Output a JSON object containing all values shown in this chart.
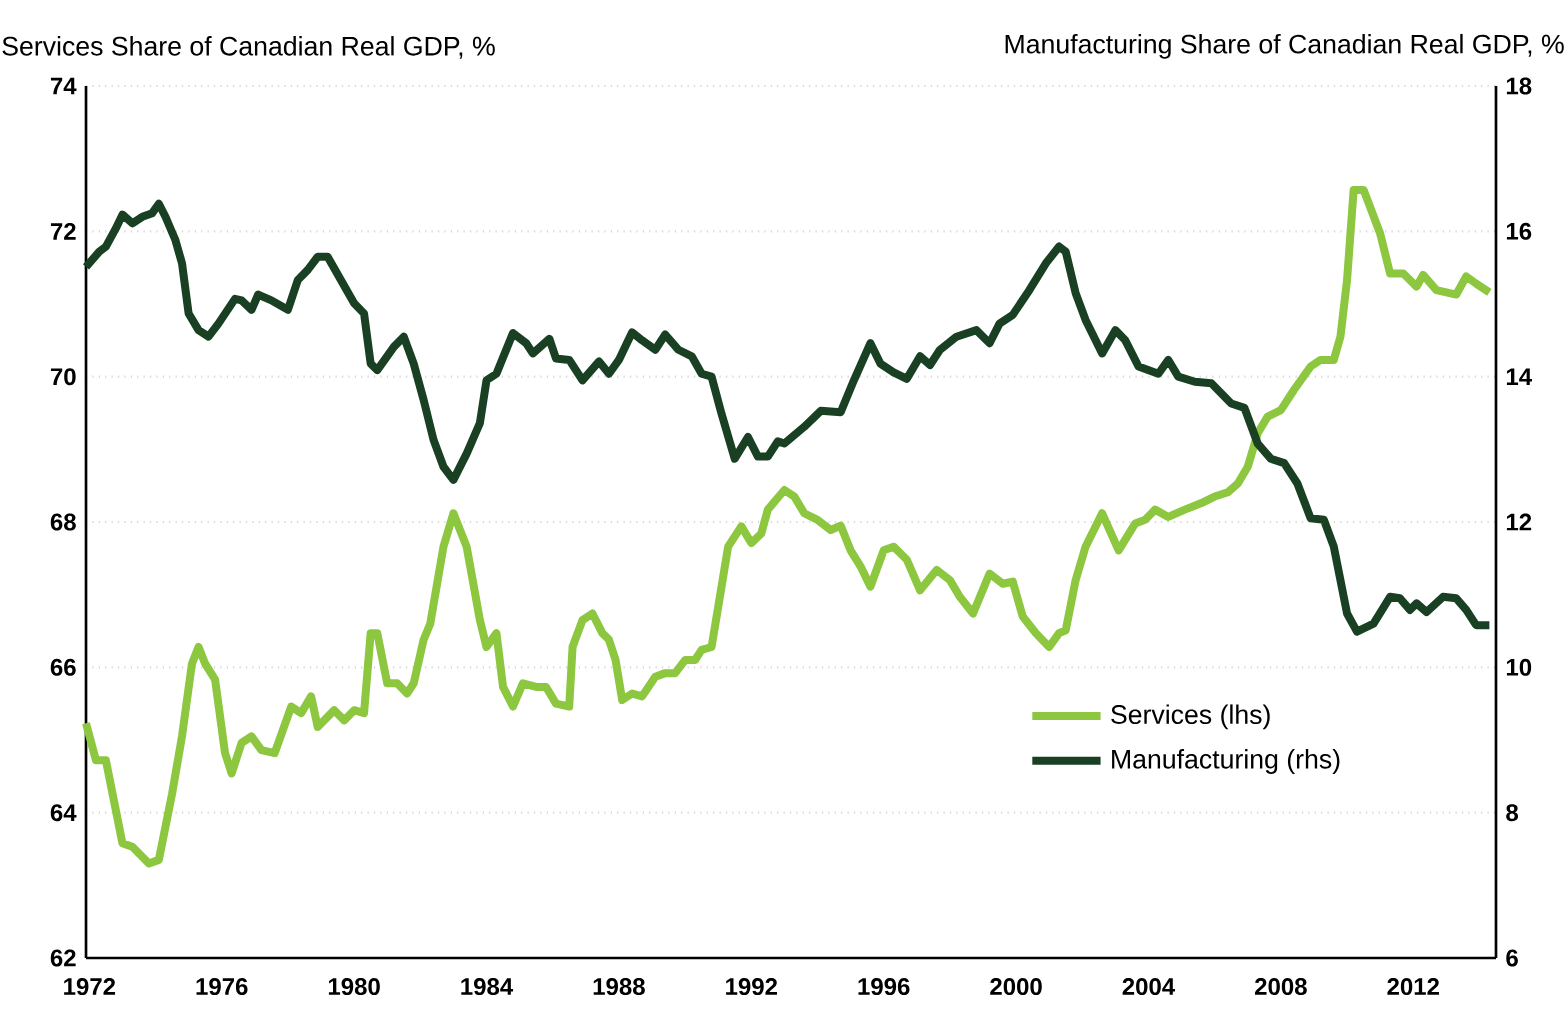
{
  "chart_data": {
    "type": "line",
    "ylabel": "Services Share of Canadian Real GDP, %",
    "y2label": "Manufacturing Share of Canadian Real GDP, %",
    "xlim": [
      1971.9,
      2014.5
    ],
    "xticks": [
      1972,
      1976,
      1980,
      1984,
      1988,
      1992,
      1996,
      2000,
      2004,
      2008,
      2012
    ],
    "ylim": [
      62,
      74
    ],
    "yticks": [
      62,
      64,
      66,
      68,
      70,
      72,
      74
    ],
    "y2lim": [
      6,
      18
    ],
    "y2ticks": [
      6,
      8,
      10,
      12,
      14,
      16,
      18
    ],
    "grid": "y",
    "legend": "bottom right",
    "series": [
      {
        "name": "Services (lhs)",
        "color": "#8dc63f",
        "axis": "y",
        "x": [
          1971.9,
          1972.2,
          1972.5,
          1973.0,
          1973.3,
          1973.8,
          1974.1,
          1974.5,
          1974.8,
          1975.1,
          1975.3,
          1975.5,
          1975.8,
          1976.1,
          1976.3,
          1976.6,
          1976.9,
          1977.2,
          1977.6,
          1978.1,
          1978.4,
          1978.7,
          1978.9,
          1979.4,
          1979.7,
          1980.0,
          1980.3,
          1980.5,
          1980.7,
          1981.0,
          1981.3,
          1981.6,
          1981.8,
          1982.1,
          1982.3,
          1982.7,
          1983.0,
          1983.4,
          1983.8,
          1984.0,
          1984.3,
          1984.5,
          1984.8,
          1985.1,
          1985.5,
          1985.8,
          1986.1,
          1986.5,
          1986.6,
          1986.9,
          1987.2,
          1987.5,
          1987.7,
          1987.9,
          1988.1,
          1988.4,
          1988.7,
          1989.1,
          1989.4,
          1989.7,
          1990.0,
          1990.3,
          1990.5,
          1990.8,
          1991.0,
          1991.3,
          1991.7,
          1992.0,
          1992.3,
          1992.5,
          1993.0,
          1993.3,
          1993.6,
          1994.0,
          1994.4,
          1994.7,
          1995.0,
          1995.3,
          1995.6,
          1996.0,
          1996.3,
          1996.7,
          1997.1,
          1997.6,
          1998.0,
          1998.3,
          1998.7,
          1999.2,
          1999.6,
          1999.9,
          2000.2,
          2000.6,
          2001.0,
          2001.3,
          2001.5,
          2001.8,
          2002.1,
          2002.6,
          2003.1,
          2003.6,
          2003.9,
          2004.2,
          2004.6,
          2005.1,
          2005.6,
          2006.0,
          2006.4,
          2006.7,
          2007.0,
          2007.3,
          2007.6,
          2008.0,
          2008.4,
          2008.9,
          2009.2,
          2009.6,
          2009.8,
          2010.0,
          2010.2,
          2010.5,
          2011.0,
          2011.3,
          2011.7,
          2012.1,
          2012.3,
          2012.7,
          2013.3,
          2013.6,
          2013.9,
          2014.3
        ],
        "values": [
          65.23,
          64.72,
          64.72,
          63.58,
          63.53,
          63.3,
          63.35,
          64.26,
          65.05,
          66.05,
          66.28,
          66.05,
          65.83,
          64.82,
          64.54,
          64.96,
          65.05,
          64.86,
          64.82,
          65.46,
          65.37,
          65.6,
          65.18,
          65.41,
          65.27,
          65.41,
          65.37,
          66.47,
          66.47,
          65.78,
          65.78,
          65.64,
          65.78,
          66.38,
          66.6,
          67.66,
          68.12,
          67.66,
          66.65,
          66.28,
          66.47,
          65.73,
          65.46,
          65.78,
          65.73,
          65.73,
          65.5,
          65.46,
          66.28,
          66.65,
          66.74,
          66.47,
          66.38,
          66.1,
          65.55,
          65.64,
          65.6,
          65.87,
          65.92,
          65.92,
          66.1,
          66.1,
          66.24,
          66.28,
          66.83,
          67.66,
          67.94,
          67.71,
          67.84,
          68.17,
          68.44,
          68.35,
          68.12,
          68.03,
          67.89,
          67.95,
          67.61,
          67.39,
          67.11,
          67.61,
          67.66,
          67.48,
          67.06,
          67.34,
          67.2,
          66.97,
          66.74,
          67.29,
          67.15,
          67.18,
          66.7,
          66.47,
          66.28,
          66.47,
          66.51,
          67.2,
          67.66,
          68.12,
          67.61,
          67.98,
          68.03,
          68.17,
          68.07,
          68.17,
          68.26,
          68.35,
          68.41,
          68.53,
          68.76,
          69.22,
          69.45,
          69.54,
          69.82,
          70.14,
          70.23,
          70.23,
          70.55,
          71.33,
          72.57,
          72.57,
          71.97,
          71.42,
          71.42,
          71.24,
          71.4,
          71.19,
          71.13,
          71.38,
          71.28,
          71.16
        ]
      },
      {
        "name": "Manufacturing (rhs)",
        "color": "#1a4024",
        "axis": "y2",
        "x": [
          1971.9,
          1972.3,
          1972.5,
          1972.8,
          1973.0,
          1973.3,
          1973.6,
          1973.9,
          1974.1,
          1974.3,
          1974.6,
          1974.8,
          1975.0,
          1975.3,
          1975.6,
          1975.9,
          1976.4,
          1976.6,
          1976.9,
          1977.1,
          1977.5,
          1978.0,
          1978.3,
          1978.6,
          1978.9,
          1979.2,
          1979.6,
          1980.0,
          1980.3,
          1980.5,
          1980.7,
          1981.2,
          1981.5,
          1981.8,
          1982.1,
          1982.4,
          1982.7,
          1983.0,
          1983.4,
          1983.8,
          1984.0,
          1984.3,
          1984.8,
          1985.2,
          1985.4,
          1985.9,
          1986.1,
          1986.5,
          1986.9,
          1987.4,
          1987.7,
          1988.0,
          1988.4,
          1988.7,
          1989.1,
          1989.4,
          1989.8,
          1990.2,
          1990.5,
          1990.8,
          1991.1,
          1991.5,
          1991.9,
          1992.2,
          1992.5,
          1992.8,
          1993.0,
          1993.6,
          1994.1,
          1994.7,
          1995.1,
          1995.6,
          1995.9,
          1996.3,
          1996.7,
          1997.1,
          1997.4,
          1997.7,
          1998.2,
          1998.8,
          1999.2,
          1999.5,
          1999.9,
          2000.4,
          2000.9,
          2001.3,
          2001.5,
          2001.8,
          2002.1,
          2002.6,
          2003.0,
          2003.3,
          2003.7,
          2004.3,
          2004.6,
          2004.9,
          2005.4,
          2005.9,
          2006.5,
          2006.9,
          2007.3,
          2007.7,
          2008.1,
          2008.5,
          2008.9,
          2009.3,
          2009.6,
          2010.0,
          2010.3,
          2010.8,
          2011.3,
          2011.6,
          2011.9,
          2012.1,
          2012.4,
          2012.9,
          2013.3,
          2013.6,
          2013.9,
          2014.3
        ],
        "values": [
          15.51,
          15.72,
          15.79,
          16.04,
          16.23,
          16.11,
          16.2,
          16.25,
          16.38,
          16.2,
          15.88,
          15.56,
          14.87,
          14.64,
          14.55,
          14.73,
          15.07,
          15.05,
          14.92,
          15.13,
          15.05,
          14.92,
          15.33,
          15.47,
          15.65,
          15.65,
          15.33,
          15.01,
          14.87,
          14.18,
          14.09,
          14.41,
          14.55,
          14.18,
          13.68,
          13.13,
          12.76,
          12.58,
          12.94,
          13.36,
          13.95,
          14.04,
          14.6,
          14.46,
          14.32,
          14.52,
          14.25,
          14.23,
          13.95,
          14.21,
          14.04,
          14.23,
          14.61,
          14.5,
          14.37,
          14.58,
          14.37,
          14.28,
          14.04,
          14.0,
          13.49,
          12.87,
          13.17,
          12.9,
          12.9,
          13.11,
          13.08,
          13.31,
          13.53,
          13.51,
          13.95,
          14.46,
          14.18,
          14.06,
          13.97,
          14.28,
          14.16,
          14.37,
          14.55,
          14.64,
          14.46,
          14.73,
          14.85,
          15.19,
          15.56,
          15.79,
          15.72,
          15.15,
          14.78,
          14.32,
          14.64,
          14.5,
          14.14,
          14.04,
          14.23,
          14.0,
          13.93,
          13.91,
          13.63,
          13.57,
          13.08,
          12.87,
          12.81,
          12.53,
          12.05,
          12.03,
          11.66,
          10.74,
          10.49,
          10.6,
          10.97,
          10.95,
          10.79,
          10.88,
          10.76,
          10.97,
          10.95,
          10.79,
          10.58,
          10.58
        ]
      }
    ]
  }
}
